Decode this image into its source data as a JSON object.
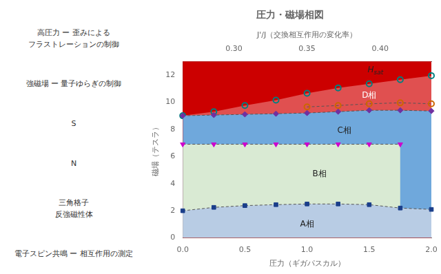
{
  "chart_data": {
    "type": "line",
    "title": "圧力・磁場相図",
    "x_label": "圧力（ギガパスカル）",
    "y_label": "磁場（テスラ）",
    "x2_label": "J'/J（交換相互作用の変化率）",
    "xlim": [
      0.0,
      2.0
    ],
    "xticks": [
      {
        "value": 0.0,
        "label": "0.0"
      },
      0.5,
      {
        "value": 1.0,
        "label": "1.0"
      },
      1.5,
      {
        "value": 2.0,
        "label": "2.0"
      }
    ],
    "ylim": [
      0,
      13
    ],
    "yticks": [
      0,
      2,
      4,
      6,
      8,
      10,
      12
    ],
    "x2lim": [
      0.265,
      0.435
    ],
    "x2ticks": [
      {
        "value": 0.3,
        "label": "0.30"
      },
      {
        "value": 0.35,
        "label": "0.35"
      },
      {
        "value": 0.4,
        "label": "0.40"
      }
    ],
    "grid": false,
    "series": [
      {
        "color": "#1a3e8a",
        "marker": "square",
        "line_style": "dashed",
        "line_color": "#555555",
        "fill_color": "#b8cce4",
        "x": [
          0.0,
          0.25,
          0.5,
          0.75,
          1.0,
          1.25,
          1.5,
          1.75,
          2.0
        ],
        "values": [
          2.0,
          2.25,
          2.38,
          2.45,
          2.5,
          2.5,
          2.45,
          2.2,
          2.1
        ]
      },
      {
        "color": "#cc00cc",
        "marker": "triangle_down",
        "line_style": "dashed",
        "line_color": "#555555",
        "fill_color": "#d9ead3",
        "x": [
          0.0,
          0.25,
          0.5,
          0.75,
          1.0,
          1.25,
          1.5,
          1.75
        ],
        "values": [
          6.9,
          6.9,
          6.9,
          6.9,
          6.9,
          6.9,
          6.9,
          6.9
        ]
      },
      {
        "color": "#7030a0",
        "marker": "diamond",
        "line_style": "dashed",
        "line_color": "#555555",
        "fill_color": "#6fa8dc",
        "x": [
          0.0,
          0.25,
          0.5,
          0.75,
          1.0,
          1.25,
          1.5,
          1.75,
          2.0
        ],
        "values": [
          9.0,
          9.05,
          9.1,
          9.15,
          9.2,
          9.3,
          9.4,
          9.4,
          9.35
        ]
      },
      {
        "color": "#cc6600",
        "marker": "circle_open",
        "line_style": "dashed",
        "line_color": "#555555",
        "x": [
          1.0,
          1.25,
          1.5,
          1.75,
          2.0
        ],
        "values": [
          9.65,
          9.75,
          9.88,
          9.95,
          9.88
        ]
      },
      {
        "color": "#008080",
        "marker": "circle_open",
        "line_style": "none",
        "fill_color": "#e05050",
        "fill_above_color": "#cc0000",
        "x": [
          0.0,
          0.25,
          0.5,
          0.75,
          1.0,
          1.25,
          1.5,
          1.75,
          2.0
        ],
        "values": [
          9.0,
          9.3,
          9.75,
          10.15,
          10.65,
          11.05,
          11.35,
          11.65,
          11.95
        ]
      }
    ],
    "annotations": [
      {
        "text": "A相",
        "x": 1.0,
        "y": 1.0
      },
      {
        "text": "B相",
        "x": 1.1,
        "y": 4.7
      },
      {
        "text": "C相",
        "x": 1.3,
        "y": 7.9
      },
      {
        "text": "D相",
        "x": 1.5,
        "y": 10.5,
        "color": "#ffffff"
      },
      {
        "text": "H",
        "subscript": "sat",
        "x": 1.55,
        "y": 12.35
      }
    ],
    "side_texts": [
      "高圧力 ー 歪みによる\nフラストレーションの制御",
      "強磁場 ー 量子ゆらぎの制御",
      "S",
      "N",
      "三角格子\n反強磁性体",
      "電子スピン共鳴 ー 相互作用の測定"
    ]
  }
}
